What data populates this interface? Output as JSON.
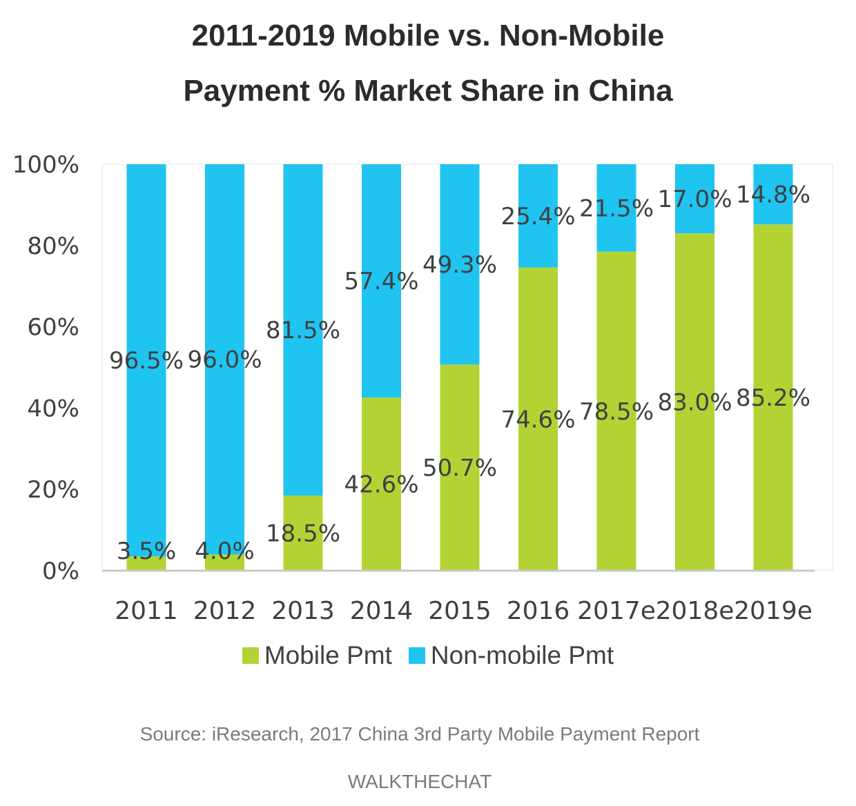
{
  "title": {
    "line1": "2011-2019 Mobile vs. Non-Mobile",
    "line2": "Payment % Market Share in China"
  },
  "colors": {
    "mobile": "#b3d334",
    "non_mobile": "#1fc4f1"
  },
  "legend": {
    "mobile_label": "Mobile Pmt",
    "non_mobile_label": "Non-mobile Pmt"
  },
  "source": "Source: iResearch, 2017 China 3rd Party Mobile Payment Report",
  "brand": "WALKTHECHAT",
  "chart_data": {
    "type": "bar",
    "stacked": true,
    "categories": [
      "2011",
      "2012",
      "2013",
      "2014",
      "2015",
      "2016",
      "2017e",
      "2018e",
      "2019e"
    ],
    "series": [
      {
        "name": "Mobile Pmt",
        "values": [
          3.5,
          4.0,
          18.5,
          42.6,
          50.7,
          74.6,
          78.5,
          83.0,
          85.2
        ],
        "labels": [
          "3.5%",
          "4.0%",
          "18.5%",
          "42.6%",
          "50.7%",
          "74.6%",
          "78.5%",
          "83.0%",
          "85.2%"
        ]
      },
      {
        "name": "Non-mobile Pmt",
        "values": [
          96.5,
          96.0,
          81.5,
          57.4,
          49.3,
          25.4,
          21.5,
          17.0,
          14.8
        ],
        "labels": [
          "96.5%",
          "96.0%",
          "81.5%",
          "57.4%",
          "49.3%",
          "25.4%",
          "21.5%",
          "17.0%",
          "14.8%"
        ]
      }
    ],
    "yticks": [
      "0%",
      "20%",
      "40%",
      "60%",
      "80%",
      "100%"
    ],
    "ylim": [
      0,
      100
    ],
    "legend_position": "bottom",
    "grid": false
  }
}
